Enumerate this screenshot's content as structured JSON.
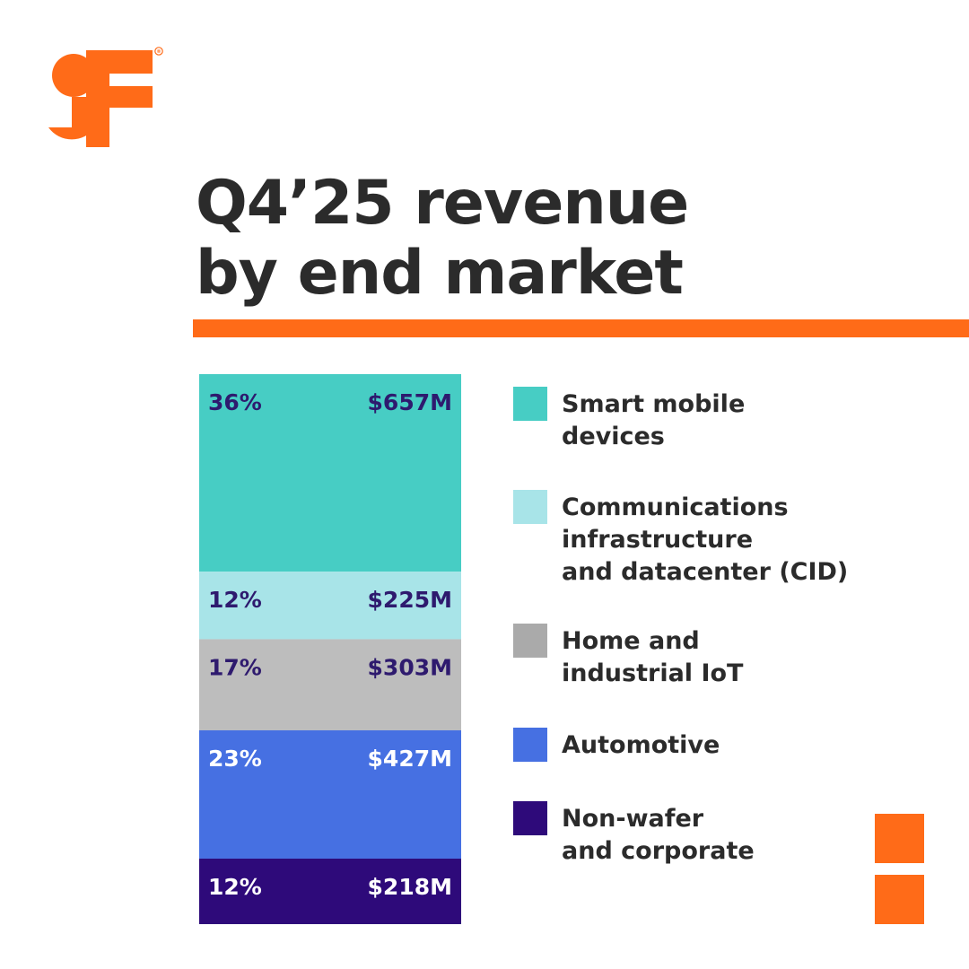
{
  "brand": {
    "accent": "#ff6b18",
    "text_color": "#2b2b2b",
    "logo_icon": "gf-logo-icon",
    "registered_mark": "®"
  },
  "title_lines": [
    "Q4’25 revenue",
    "by end market"
  ],
  "chart_data": {
    "type": "bar",
    "stacked": true,
    "orientation": "vertical",
    "title": "Q4’25 revenue by end market",
    "unit": "USD millions",
    "series": [
      {
        "name": "Smart mobile devices",
        "legend": "Smart mobile\ndevices",
        "percent_label": "36%",
        "value_label": "$657M",
        "value": 657,
        "color": "#47cdc4",
        "label_color": "#2e1a6e"
      },
      {
        "name": "Communications infrastructure and datacenter (CID)",
        "legend": "Communications\ninfrastructure\nand datacenter (CID)",
        "percent_label": "12%",
        "value_label": "$225M",
        "value": 225,
        "color": "#a8e4e8",
        "label_color": "#2e1a6e"
      },
      {
        "name": "Home and industrial IoT",
        "legend": "Home and\nindustrial IoT",
        "percent_label": "17%",
        "value_label": "$303M",
        "value": 303,
        "color": "#bdbdbd",
        "label_color": "#2e1a6e"
      },
      {
        "name": "Automotive",
        "legend": "Automotive",
        "percent_label": "23%",
        "value_label": "$427M",
        "value": 427,
        "color": "#4670e2",
        "label_color": "#ffffff"
      },
      {
        "name": "Non-wafer and corporate",
        "legend": "Non-wafer\nand corporate",
        "percent_label": "12%",
        "value_label": "$218M",
        "value": 218,
        "color": "#2e0a7a",
        "label_color": "#ffffff"
      }
    ],
    "legend_swatch_colors": [
      "#47cdc4",
      "#a8e4e8",
      "#aaaaaa",
      "#4670e2",
      "#2e0a7a"
    ],
    "legend_position": "right"
  }
}
